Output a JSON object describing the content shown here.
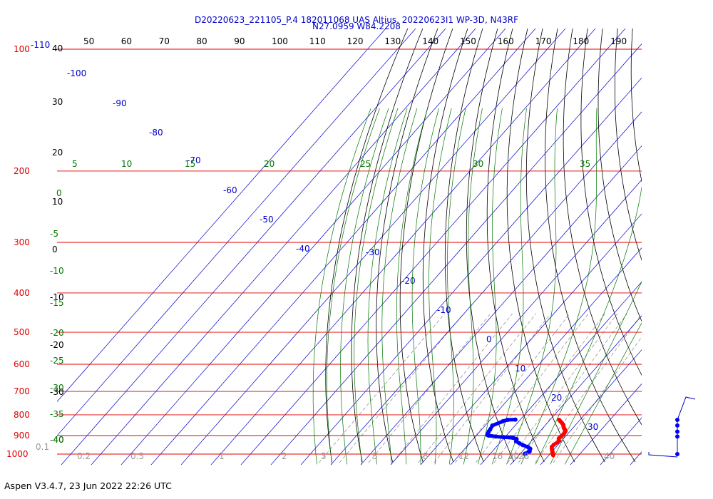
{
  "title": {
    "line1": "D20220623_221105_P.4 182011068 UAS Altius, 20220623I1 WP-3D, N43RF",
    "line2": "N27.0959 W84.2208"
  },
  "footer": "Aspen V3.4.7, 23 Jun 2022  22:26 UTC",
  "colors": {
    "isobar": "#e00000",
    "isotherm": "#0000cc",
    "dry_adiabat": "#000000",
    "moist_adiabat": "#007700",
    "mixing_ratio": "#888888",
    "temperature": "#ff0000",
    "dewpoint": "#0000ff"
  },
  "chart_data": {
    "type": "skew-t",
    "pressure_labels": [
      "100",
      "200",
      "300",
      "400",
      "500",
      "600",
      "700",
      "800",
      "900",
      "1000"
    ],
    "top_extra_label": "-110",
    "top_theta_labels": [
      "50",
      "60",
      "70",
      "80",
      "90",
      "100",
      "110",
      "120",
      "130",
      "140",
      "150",
      "160",
      "170",
      "180",
      "190"
    ],
    "left_theta_labels": [
      "40",
      "30",
      "20",
      "10",
      "0",
      "-10",
      "-20",
      "-30",
      "-40"
    ],
    "isotherm_labels": [
      "-100",
      "-90",
      "-80",
      "-70",
      "-60",
      "-50",
      "-40",
      "-30",
      "-20",
      "-10",
      "0",
      "10",
      "20",
      "30"
    ],
    "moist_top_labels": [
      "5",
      "10",
      "15",
      "20",
      "25",
      "30",
      "35"
    ],
    "moist_left_labels": [
      "0",
      "-5",
      "-10",
      "-15",
      "-20",
      "-25",
      "-30",
      "-35",
      "-40"
    ],
    "mixing_ratio_labels": [
      "0.1",
      "0.2",
      "0.5",
      "1",
      "2",
      "3",
      "5",
      "8",
      "12",
      "16",
      "20",
      "28",
      "40"
    ],
    "temperature_profile": [
      {
        "p": 823,
        "t": 24.8
      },
      {
        "p": 830,
        "t": 25.7
      },
      {
        "p": 838,
        "t": 26.8
      },
      {
        "p": 846,
        "t": 27.8
      },
      {
        "p": 855,
        "t": 28.5
      },
      {
        "p": 863,
        "t": 29.2
      },
      {
        "p": 870,
        "t": 30.0
      },
      {
        "p": 878,
        "t": 30.7
      },
      {
        "p": 886,
        "t": 30.9
      },
      {
        "p": 895,
        "t": 31.1
      },
      {
        "p": 905,
        "t": 31.0
      },
      {
        "p": 915,
        "t": 30.9
      },
      {
        "p": 925,
        "t": 31.6
      },
      {
        "p": 935,
        "t": 31.8
      },
      {
        "p": 948,
        "t": 31.3
      },
      {
        "p": 960,
        "t": 31.4
      },
      {
        "p": 970,
        "t": 32.0
      },
      {
        "p": 978,
        "t": 32.6
      },
      {
        "p": 985,
        "t": 33.1
      },
      {
        "p": 992,
        "t": 33.6
      },
      {
        "p": 1000,
        "t": 34.2
      },
      {
        "p": 1006,
        "t": 34.6
      }
    ],
    "dewpoint_profile": [
      {
        "p": 822,
        "t": 10.1
      },
      {
        "p": 823,
        "t": 7.6
      },
      {
        "p": 830,
        "t": 6.5
      },
      {
        "p": 850,
        "t": 4.4
      },
      {
        "p": 870,
        "t": 5.0
      },
      {
        "p": 880,
        "t": 5.2
      },
      {
        "p": 890,
        "t": 5.6
      },
      {
        "p": 897,
        "t": 5.9
      },
      {
        "p": 900,
        "t": 6.5
      },
      {
        "p": 905,
        "t": 9.2
      },
      {
        "p": 908,
        "t": 12.0
      },
      {
        "p": 912,
        "t": 15.5
      },
      {
        "p": 918,
        "t": 17.0
      },
      {
        "p": 930,
        "t": 17.6
      },
      {
        "p": 940,
        "t": 19.3
      },
      {
        "p": 950,
        "t": 21.1
      },
      {
        "p": 960,
        "t": 23.3
      },
      {
        "p": 970,
        "t": 24.8
      },
      {
        "p": 985,
        "t": 25.5
      },
      {
        "p": 998,
        "t": 24.7
      }
    ],
    "wind_profile_markers": [
      {
        "p": 823
      },
      {
        "p": 850
      },
      {
        "p": 880
      },
      {
        "p": 905
      },
      {
        "p": 1000
      }
    ]
  }
}
